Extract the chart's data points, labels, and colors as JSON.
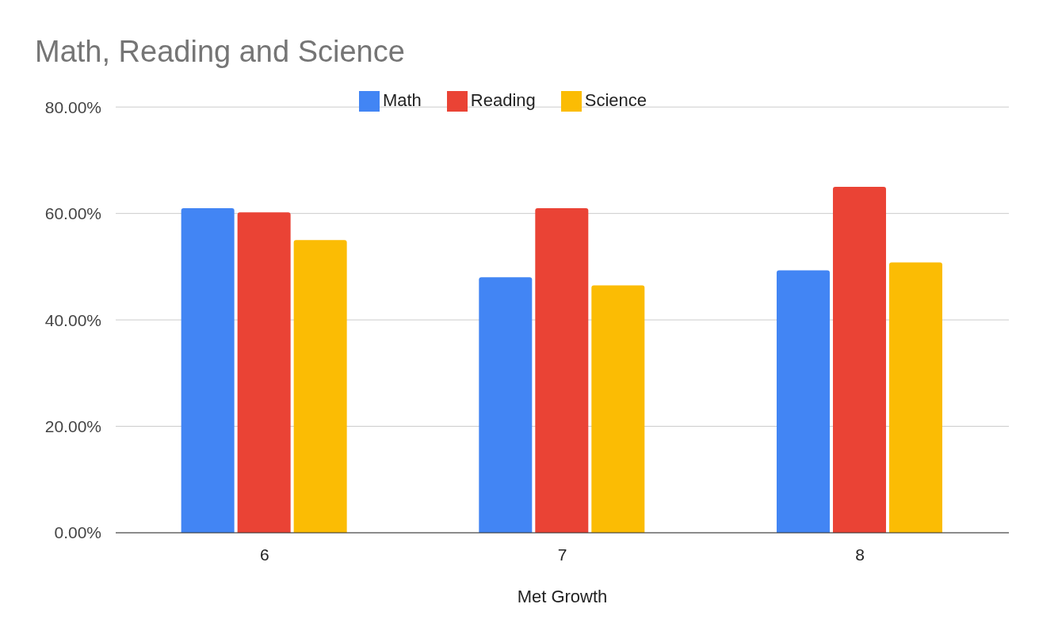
{
  "chart_data": {
    "type": "bar",
    "title": "Math, Reading and Science",
    "xlabel": "Met Growth",
    "categories": [
      "6",
      "7",
      "8"
    ],
    "series": [
      {
        "name": "Math",
        "color": "#4285f4",
        "values": [
          61,
          48,
          49.3
        ]
      },
      {
        "name": "Reading",
        "color": "#ea4335",
        "values": [
          60.2,
          61,
          65
        ]
      },
      {
        "name": "Science",
        "color": "#fbbc04",
        "values": [
          55,
          46.5,
          50.8
        ]
      }
    ],
    "ylim": [
      0,
      80
    ],
    "yticks": [
      {
        "value": 0,
        "label": "0.00%"
      },
      {
        "value": 20,
        "label": "20.00%"
      },
      {
        "value": 40,
        "label": "40.00%"
      },
      {
        "value": 60,
        "label": "60.00%"
      },
      {
        "value": 80,
        "label": "80.00%"
      }
    ],
    "grid": "y",
    "legend": "top"
  }
}
